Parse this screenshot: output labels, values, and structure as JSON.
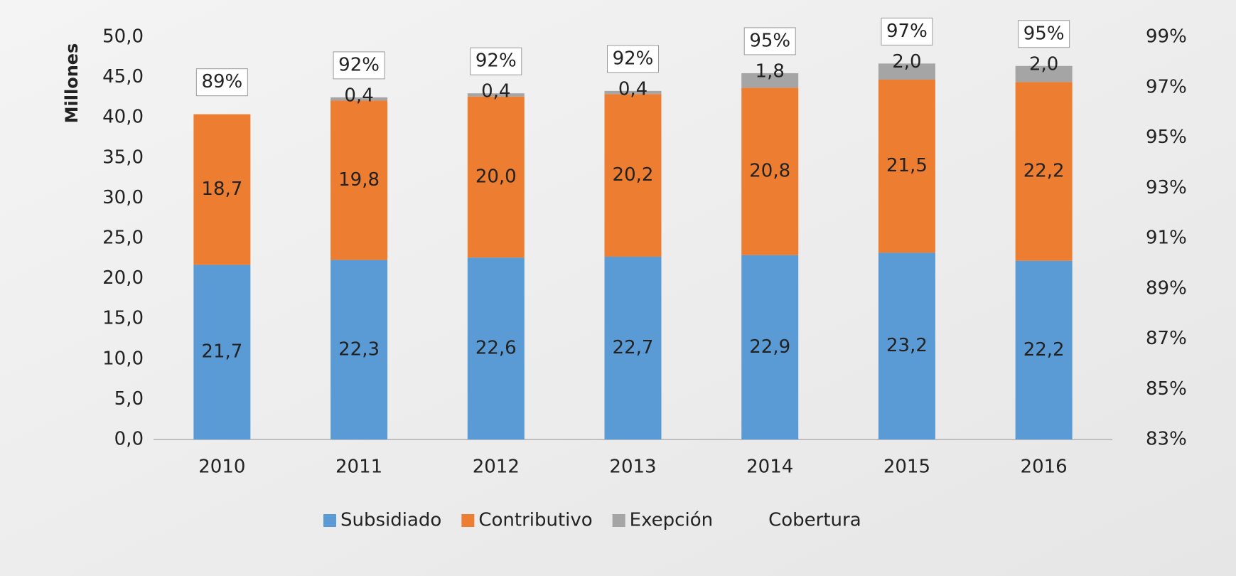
{
  "chart_data": {
    "type": "bar",
    "stacked": true,
    "y_label": "Millones",
    "categories": [
      "2010",
      "2011",
      "2012",
      "2013",
      "2014",
      "2015",
      "2016"
    ],
    "series": [
      {
        "name": "Subsidiado",
        "color": "#5b9bd5",
        "values": [
          21.7,
          22.3,
          22.6,
          22.7,
          22.9,
          23.2,
          22.2
        ],
        "value_labels": [
          "21,7",
          "22,3",
          "22,6",
          "22,7",
          "22,9",
          "23,2",
          "22,2"
        ]
      },
      {
        "name": "Contributivo",
        "color": "#ed7d31",
        "values": [
          18.7,
          19.8,
          20.0,
          20.2,
          20.8,
          21.5,
          22.2
        ],
        "value_labels": [
          "18,7",
          "19,8",
          "20,0",
          "20,2",
          "20,8",
          "21,5",
          "22,2"
        ]
      },
      {
        "name": "Exepción",
        "color": "#a5a5a5",
        "values": [
          null,
          0.4,
          0.4,
          0.4,
          1.8,
          2.0,
          2.0
        ],
        "value_labels": [
          null,
          "0,4",
          "0,4",
          "0,4",
          "1,8",
          "2,0",
          "2,0"
        ]
      },
      {
        "name": "Cobertura",
        "axis": "y2",
        "values": [
          89,
          92,
          92,
          92,
          95,
          97,
          95
        ],
        "value_labels": [
          "89%",
          "92%",
          "92%",
          "92%",
          "95%",
          "97%",
          "95%"
        ]
      }
    ],
    "ylim": [
      0,
      50
    ],
    "yticks": [
      {
        "value": 0,
        "label": "0,0"
      },
      {
        "value": 5,
        "label": "5,0"
      },
      {
        "value": 10,
        "label": "10,0"
      },
      {
        "value": 15,
        "label": "15,0"
      },
      {
        "value": 20,
        "label": "20,0"
      },
      {
        "value": 25,
        "label": "25,0"
      },
      {
        "value": 30,
        "label": "30,0"
      },
      {
        "value": 35,
        "label": "35,0"
      },
      {
        "value": 40,
        "label": "40,0"
      },
      {
        "value": 45,
        "label": "45,0"
      },
      {
        "value": 50,
        "label": "50,0"
      }
    ],
    "y2lim": [
      83,
      99
    ],
    "y2ticks": [
      {
        "value": 83,
        "label": "83%"
      },
      {
        "value": 85,
        "label": "85%"
      },
      {
        "value": 87,
        "label": "87%"
      },
      {
        "value": 89,
        "label": "89%"
      },
      {
        "value": 91,
        "label": "91%"
      },
      {
        "value": 93,
        "label": "93%"
      },
      {
        "value": 95,
        "label": "95%"
      },
      {
        "value": 97,
        "label": "97%"
      },
      {
        "value": 99,
        "label": "99%"
      }
    ],
    "legend": "bottom"
  }
}
